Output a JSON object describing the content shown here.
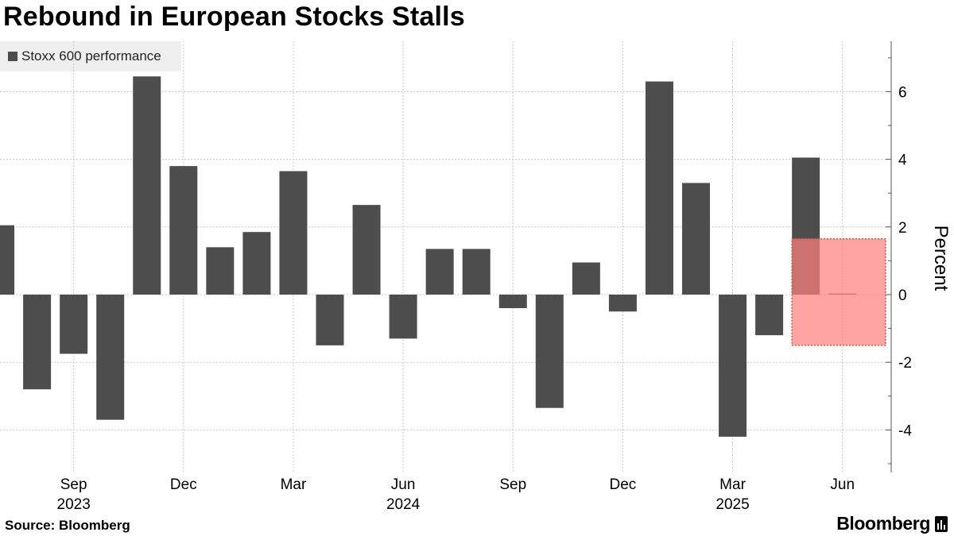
{
  "title": "Rebound in European Stocks Stalls",
  "legend": {
    "label": "Stoxx 600 performance",
    "color": "#4d4d4d"
  },
  "source": "Source: Bloomberg",
  "brand": {
    "name": "Bloomberg",
    "icon": "bloomberg-terminal-icon"
  },
  "chart_data": {
    "type": "bar",
    "title": "Rebound in European Stocks Stalls",
    "ylabel": "Percent",
    "xlabel": "",
    "ylim": [
      -5,
      7.5
    ],
    "yticks": [
      -4,
      -2,
      0,
      2,
      4,
      6
    ],
    "grid": true,
    "legend_position": "top-left",
    "bar_color": "#4d4d4d",
    "categories": [
      "Jul 2023",
      "Aug 2023",
      "Sep 2023",
      "Oct 2023",
      "Nov 2023",
      "Dec 2023",
      "Jan 2024",
      "Feb 2024",
      "Mar 2024",
      "Apr 2024",
      "May 2024",
      "Jun 2024",
      "Jul 2024",
      "Aug 2024",
      "Sep 2024",
      "Oct 2024",
      "Nov 2024",
      "Dec 2024",
      "Jan 2025",
      "Feb 2025",
      "Mar 2025",
      "Apr 2025",
      "May 2025",
      "Jun 2025"
    ],
    "series": [
      {
        "name": "Stoxx 600 performance",
        "values": [
          2.05,
          -2.8,
          -1.75,
          -3.7,
          6.45,
          3.8,
          1.4,
          1.85,
          3.65,
          -1.5,
          2.65,
          -1.3,
          1.35,
          1.35,
          -0.4,
          -3.35,
          0.95,
          -0.5,
          6.3,
          3.3,
          -4.2,
          -1.2,
          4.05,
          0.03
        ]
      }
    ],
    "x_tick_labels": [
      {
        "category": "Sep 2023",
        "month": "Sep",
        "year": "2023"
      },
      {
        "category": "Dec 2023",
        "month": "Dec",
        "year": ""
      },
      {
        "category": "Mar 2024",
        "month": "Mar",
        "year": ""
      },
      {
        "category": "Jun 2024",
        "month": "Jun",
        "year": "2024"
      },
      {
        "category": "Sep 2024",
        "month": "Sep",
        "year": ""
      },
      {
        "category": "Dec 2024",
        "month": "Dec",
        "year": ""
      },
      {
        "category": "Mar 2025",
        "month": "Mar",
        "year": "2025"
      },
      {
        "category": "Jun 2025",
        "month": "Jun",
        "year": ""
      }
    ],
    "annotations": [
      {
        "type": "highlight-box",
        "from_category": "May 2025",
        "to_category": "Jun 2025",
        "y_from": -1.5,
        "y_to": 1.65,
        "color": "#ff8080"
      }
    ]
  }
}
